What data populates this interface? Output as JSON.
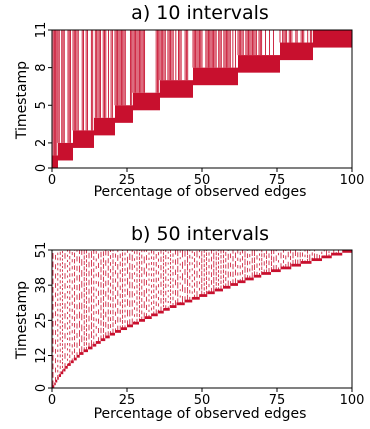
{
  "figure": {
    "background": "#ffffff",
    "mark_color": "#c8102e"
  },
  "chart_data": [
    {
      "type": "area",
      "title": "a) 10 intervals",
      "xlabel": "Percentage of observed edges",
      "ylabel": "Timestamp",
      "xlim": [
        0,
        100
      ],
      "ylim": [
        0,
        11
      ],
      "xticks": [
        0,
        25,
        50,
        75,
        100
      ],
      "yticks": [
        0,
        2,
        5,
        8,
        11
      ],
      "grid": false,
      "legend": "none",
      "series": [
        {
          "intervals": [
            {
              "x_start": 0,
              "x_end": 2,
              "y_low": 0.0,
              "y_high": 1.0
            },
            {
              "x_start": 2,
              "x_end": 7,
              "y_low": 0.6,
              "y_high": 2.0
            },
            {
              "x_start": 7,
              "x_end": 14,
              "y_low": 1.6,
              "y_high": 3.0
            },
            {
              "x_start": 14,
              "x_end": 21,
              "y_low": 2.6,
              "y_high": 4.0
            },
            {
              "x_start": 21,
              "x_end": 27,
              "y_low": 3.6,
              "y_high": 5.0
            },
            {
              "x_start": 27,
              "x_end": 36,
              "y_low": 4.6,
              "y_high": 6.0
            },
            {
              "x_start": 36,
              "x_end": 47,
              "y_low": 5.6,
              "y_high": 7.0
            },
            {
              "x_start": 47,
              "x_end": 62,
              "y_low": 6.6,
              "y_high": 8.0
            },
            {
              "x_start": 62,
              "x_end": 76,
              "y_low": 7.6,
              "y_high": 9.0
            },
            {
              "x_start": 76,
              "x_end": 87,
              "y_low": 8.6,
              "y_high": 10.0
            },
            {
              "x_start": 87,
              "x_end": 100,
              "y_low": 9.6,
              "y_high": 11.0
            }
          ]
        }
      ]
    },
    {
      "type": "area",
      "title": "b) 50 intervals",
      "xlabel": "Percentage of observed edges",
      "ylabel": "Timestamp",
      "xlim": [
        0,
        100
      ],
      "ylim": [
        0,
        51
      ],
      "xticks": [
        0,
        25,
        50,
        75,
        100
      ],
      "yticks": [
        0,
        12,
        25,
        38,
        51
      ],
      "grid": false,
      "legend": "none",
      "series": [
        {
          "step_profile": [
            {
              "x": 0,
              "y": 0
            },
            {
              "x": 2,
              "y": 4
            },
            {
              "x": 5,
              "y": 8
            },
            {
              "x": 10,
              "y": 13
            },
            {
              "x": 20,
              "y": 20
            },
            {
              "x": 30,
              "y": 25
            },
            {
              "x": 40,
              "y": 30
            },
            {
              "x": 50,
              "y": 34
            },
            {
              "x": 60,
              "y": 38
            },
            {
              "x": 70,
              "y": 42
            },
            {
              "x": 80,
              "y": 45
            },
            {
              "x": 90,
              "y": 48
            },
            {
              "x": 100,
              "y": 51
            }
          ],
          "interval_count": 50
        }
      ]
    }
  ]
}
